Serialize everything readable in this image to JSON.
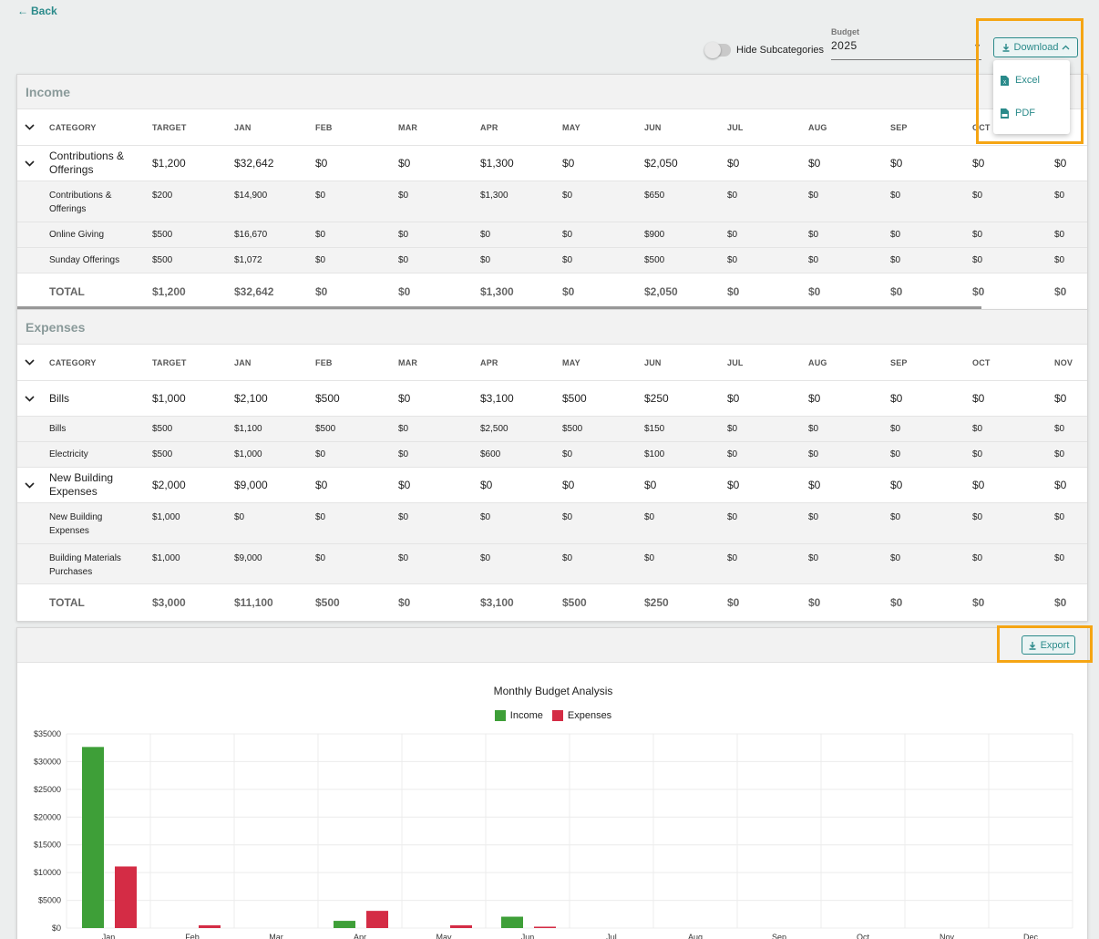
{
  "nav": {
    "back_label": "Back"
  },
  "controls": {
    "hide_subcategories_label": "Hide Subcategories",
    "budget_label": "Budget",
    "budget_value": "2025",
    "download_label": "Download",
    "download_menu": [
      "Excel",
      "PDF"
    ]
  },
  "income": {
    "title": "Income",
    "headers": [
      "CATEGORY",
      "TARGET",
      "JAN",
      "FEB",
      "MAR",
      "APR",
      "MAY",
      "JUN",
      "JUL",
      "AUG",
      "SEP",
      "OCT",
      ""
    ],
    "rows": [
      {
        "type": "main",
        "name": "Contributions & Offerings",
        "values": [
          "$1,200",
          "$32,642",
          "$0",
          "$0",
          "$1,300",
          "$0",
          "$2,050",
          "$0",
          "$0",
          "$0",
          "$0",
          "$0"
        ]
      },
      {
        "type": "sub",
        "name": "Contributions & Offerings",
        "values": [
          "$200",
          "$14,900",
          "$0",
          "$0",
          "$1,300",
          "$0",
          "$650",
          "$0",
          "$0",
          "$0",
          "$0",
          "$0"
        ]
      },
      {
        "type": "sub",
        "name": "Online Giving",
        "values": [
          "$500",
          "$16,670",
          "$0",
          "$0",
          "$0",
          "$0",
          "$900",
          "$0",
          "$0",
          "$0",
          "$0",
          "$0"
        ]
      },
      {
        "type": "sub",
        "name": "Sunday Offerings",
        "values": [
          "$500",
          "$1,072",
          "$0",
          "$0",
          "$0",
          "$0",
          "$500",
          "$0",
          "$0",
          "$0",
          "$0",
          "$0"
        ]
      }
    ],
    "total": {
      "name": "TOTAL",
      "values": [
        "$1,200",
        "$32,642",
        "$0",
        "$0",
        "$1,300",
        "$0",
        "$2,050",
        "$0",
        "$0",
        "$0",
        "$0",
        "$0"
      ]
    }
  },
  "expenses": {
    "title": "Expenses",
    "headers": [
      "CATEGORY",
      "TARGET",
      "JAN",
      "FEB",
      "MAR",
      "APR",
      "MAY",
      "JUN",
      "JUL",
      "AUG",
      "SEP",
      "OCT",
      "NOV"
    ],
    "rows": [
      {
        "type": "main",
        "name": "Bills",
        "values": [
          "$1,000",
          "$2,100",
          "$500",
          "$0",
          "$3,100",
          "$500",
          "$250",
          "$0",
          "$0",
          "$0",
          "$0",
          "$0"
        ]
      },
      {
        "type": "sub",
        "name": "Bills",
        "values": [
          "$500",
          "$1,100",
          "$500",
          "$0",
          "$2,500",
          "$500",
          "$150",
          "$0",
          "$0",
          "$0",
          "$0",
          "$0"
        ]
      },
      {
        "type": "sub",
        "name": "Electricity",
        "values": [
          "$500",
          "$1,000",
          "$0",
          "$0",
          "$600",
          "$0",
          "$100",
          "$0",
          "$0",
          "$0",
          "$0",
          "$0"
        ]
      },
      {
        "type": "main",
        "name": "New Building Expenses",
        "values": [
          "$2,000",
          "$9,000",
          "$0",
          "$0",
          "$0",
          "$0",
          "$0",
          "$0",
          "$0",
          "$0",
          "$0",
          "$0"
        ]
      },
      {
        "type": "sub",
        "name": "New Building Expenses",
        "values": [
          "$1,000",
          "$0",
          "$0",
          "$0",
          "$0",
          "$0",
          "$0",
          "$0",
          "$0",
          "$0",
          "$0",
          "$0"
        ]
      },
      {
        "type": "sub",
        "name": "Building Materials Purchases",
        "values": [
          "$1,000",
          "$9,000",
          "$0",
          "$0",
          "$0",
          "$0",
          "$0",
          "$0",
          "$0",
          "$0",
          "$0",
          "$0"
        ]
      }
    ],
    "total": {
      "name": "TOTAL",
      "values": [
        "$3,000",
        "$11,100",
        "$500",
        "$0",
        "$3,100",
        "$500",
        "$250",
        "$0",
        "$0",
        "$0",
        "$0",
        "$0"
      ]
    }
  },
  "chart_panel": {
    "export_label": "Export"
  },
  "colors": {
    "accent": "#2a8a8a",
    "income": "#3e9f38",
    "expenses": "#d42c45",
    "highlight": "#f5a514"
  },
  "chart_data": {
    "type": "bar",
    "title": "Monthly Budget Analysis",
    "categories": [
      "Jan",
      "Feb",
      "Mar",
      "Apr",
      "May",
      "Jun",
      "Jul",
      "Aug",
      "Sep",
      "Oct",
      "Nov",
      "Dec"
    ],
    "series": [
      {
        "name": "Income",
        "values": [
          32642,
          0,
          0,
          1300,
          0,
          2050,
          0,
          0,
          0,
          0,
          0,
          0
        ]
      },
      {
        "name": "Expenses",
        "values": [
          11100,
          500,
          0,
          3100,
          500,
          250,
          0,
          0,
          0,
          0,
          0,
          0
        ]
      }
    ],
    "yticks": [
      "$0",
      "$5000",
      "$10000",
      "$15000",
      "$20000",
      "$25000",
      "$30000",
      "$35000"
    ],
    "ylim": [
      0,
      35000
    ],
    "grid": true,
    "legend": "top-center"
  }
}
